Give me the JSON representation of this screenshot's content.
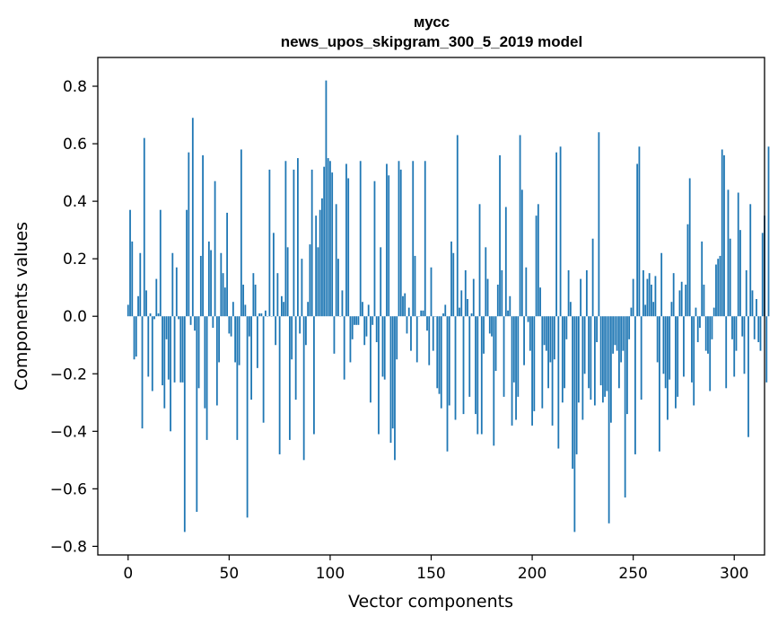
{
  "chart_data": {
    "type": "bar",
    "title": [
      "мусс",
      "news_upos_skipgram_300_5_2019 model"
    ],
    "xlabel": "Vector components",
    "ylabel": "Components values",
    "xlim": [
      -15,
      315
    ],
    "ylim": [
      -0.83,
      0.9
    ],
    "xticks": [
      0,
      50,
      100,
      150,
      200,
      250,
      300
    ],
    "yticks": [
      -0.8,
      -0.6,
      -0.4,
      -0.2,
      0.0,
      0.2,
      0.4,
      0.6,
      0.8
    ],
    "ytick_labels": [
      "−0.8",
      "−0.6",
      "−0.4",
      "−0.2",
      "0.0",
      "0.2",
      "0.4",
      "0.6",
      "0.8"
    ],
    "bar_color": "#1f77b4",
    "series": [
      {
        "name": "мусс",
        "values": [
          0.04,
          0.37,
          0.26,
          -0.15,
          -0.14,
          0.07,
          0.22,
          -0.39,
          0.62,
          0.09,
          -0.21,
          0.01,
          -0.26,
          -0.01,
          0.13,
          0.01,
          0.37,
          -0.24,
          -0.32,
          -0.08,
          -0.22,
          -0.4,
          0.22,
          -0.23,
          0.17,
          -0.01,
          -0.23,
          -0.23,
          -0.75,
          0.37,
          0.57,
          -0.03,
          0.69,
          -0.05,
          -0.68,
          -0.25,
          0.21,
          0.56,
          -0.32,
          -0.43,
          0.26,
          0.23,
          -0.04,
          0.47,
          -0.31,
          -0.16,
          0.22,
          0.15,
          0.1,
          0.36,
          -0.06,
          -0.07,
          0.05,
          -0.16,
          -0.43,
          -0.17,
          0.58,
          0.11,
          0.04,
          -0.7,
          -0.07,
          -0.29,
          0.15,
          0.11,
          -0.18,
          0.01,
          0.01,
          -0.37,
          0.02,
          0.0,
          0.51,
          0.0,
          0.29,
          -0.1,
          0.15,
          -0.48,
          0.07,
          0.05,
          0.54,
          0.24,
          -0.43,
          -0.15,
          0.51,
          -0.29,
          0.55,
          -0.06,
          0.2,
          -0.5,
          -0.1,
          0.05,
          0.25,
          0.51,
          -0.41,
          0.35,
          0.24,
          0.37,
          0.41,
          0.52,
          0.82,
          0.55,
          0.54,
          0.5,
          -0.13,
          0.39,
          0.2,
          0.0,
          0.09,
          -0.22,
          0.53,
          0.48,
          -0.16,
          -0.08,
          -0.03,
          -0.03,
          -0.03,
          0.54,
          0.05,
          -0.1,
          -0.07,
          0.04,
          -0.3,
          -0.03,
          0.47,
          -0.09,
          -0.41,
          0.24,
          -0.21,
          -0.22,
          0.53,
          0.49,
          -0.44,
          -0.39,
          -0.5,
          -0.15,
          0.54,
          0.51,
          0.07,
          0.08,
          -0.06,
          0.03,
          -0.12,
          0.54,
          0.21,
          -0.16,
          0.0,
          0.02,
          0.02,
          0.54,
          -0.05,
          -0.17,
          0.17,
          -0.12,
          0.0,
          -0.25,
          -0.27,
          -0.32,
          0.01,
          0.04,
          -0.47,
          -0.31,
          0.26,
          0.22,
          -0.36,
          0.63,
          0.03,
          0.09,
          -0.34,
          0.16,
          0.06,
          -0.28,
          0.01,
          0.13,
          -0.34,
          -0.41,
          0.39,
          -0.41,
          -0.13,
          0.24,
          0.13,
          -0.06,
          -0.07,
          -0.45,
          -0.19,
          0.11,
          0.56,
          0.16,
          -0.28,
          0.38,
          0.02,
          0.07,
          -0.38,
          -0.23,
          -0.36,
          -0.28,
          0.63,
          0.44,
          -0.17,
          0.17,
          -0.02,
          -0.12,
          -0.38,
          -0.33,
          0.35,
          0.39,
          0.1,
          -0.32,
          -0.1,
          -0.12,
          -0.25,
          -0.16,
          -0.38,
          -0.15,
          0.57,
          -0.46,
          0.59,
          -0.3,
          -0.25,
          -0.08,
          0.16,
          0.05,
          -0.53,
          -0.75,
          -0.48,
          -0.3,
          0.13,
          -0.36,
          -0.2,
          0.16,
          -0.25,
          -0.29,
          0.27,
          -0.31,
          -0.09,
          0.64,
          -0.24,
          -0.3,
          -0.28,
          -0.26,
          -0.72,
          -0.37,
          -0.13,
          -0.1,
          -0.12,
          -0.25,
          -0.16,
          -0.12,
          -0.63,
          -0.34,
          -0.08,
          0.03,
          0.13,
          -0.48,
          0.53,
          0.59,
          -0.29,
          0.16,
          0.04,
          0.13,
          0.15,
          0.11,
          0.05,
          0.14,
          -0.16,
          -0.47,
          0.22,
          -0.2,
          -0.25,
          -0.36,
          -0.22,
          0.05,
          0.15,
          -0.32,
          -0.28,
          0.09,
          0.12,
          -0.21,
          0.11,
          0.32,
          0.48,
          -0.23,
          -0.31,
          0.03,
          -0.09,
          -0.04,
          0.26,
          0.11,
          -0.12,
          -0.13,
          -0.26,
          -0.08,
          0.03,
          0.18,
          0.2,
          0.21,
          0.58,
          0.56,
          -0.25,
          0.44,
          0.27,
          -0.08,
          -0.21,
          -0.12,
          0.43,
          0.3,
          -0.07,
          -0.2,
          0.16,
          -0.42,
          0.39,
          0.09,
          -0.08,
          0.06,
          -0.09,
          -0.12,
          0.29,
          0.35,
          -0.23,
          0.59
        ]
      }
    ]
  }
}
